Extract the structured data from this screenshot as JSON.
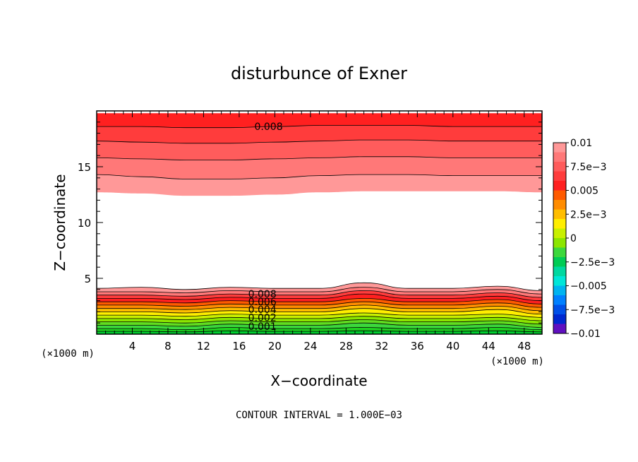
{
  "chart_data": {
    "type": "contour",
    "title": "disturbunce of Exner",
    "xlabel": "X−coordinate",
    "ylabel": "Z−coordinate",
    "x_unit": "(×1000 m)",
    "y_unit": "(×1000 m)",
    "xlim": [
      0,
      50
    ],
    "ylim": [
      0,
      20
    ],
    "x_ticks": [
      4,
      8,
      12,
      16,
      20,
      24,
      28,
      32,
      36,
      40,
      44,
      48
    ],
    "y_ticks": [
      5,
      10,
      15
    ],
    "footer": "CONTOUR INTERVAL = 1.000E−03",
    "colorbar": {
      "min": -0.01,
      "max": 0.01,
      "labels": [
        "0.01",
        "7.5e−3",
        "0.005",
        "2.5e−3",
        "0",
        "−2.5e−3",
        "−0.005",
        "−7.5e−3",
        "−0.01"
      ],
      "colors": [
        "#ff9898",
        "#ff7878",
        "#ff5c5c",
        "#ff3c3c",
        "#ff2020",
        "#ff5a00",
        "#ff8c00",
        "#ffbe00",
        "#ffee00",
        "#c8f000",
        "#8ce600",
        "#3cd83c",
        "#00cc55",
        "#00d8a0",
        "#00e6d8",
        "#00b4f0",
        "#0080ff",
        "#0050e8",
        "#0028d0",
        "#6010c0"
      ]
    },
    "contour_labels": [
      "0.008",
      "0.008",
      "0.006",
      "0.004",
      "0.002",
      "0.001"
    ],
    "bands": [
      {
        "level": 0.01,
        "color": "#ff2020",
        "z": [
          19.8,
          19.8,
          19.8,
          19.8,
          19.8,
          19.8,
          19.8,
          19.8,
          19.8,
          19.8,
          19.8
        ]
      },
      {
        "level": 0.0095,
        "color": "#ff3c3c",
        "z": [
          18.6,
          18.6,
          18.5,
          18.5,
          18.6,
          18.7,
          18.7,
          18.7,
          18.6,
          18.6,
          18.6
        ]
      },
      {
        "level": 0.009,
        "color": "#ff5c5c",
        "z": [
          17.3,
          17.2,
          17.1,
          17.1,
          17.2,
          17.3,
          17.4,
          17.4,
          17.3,
          17.3,
          17.3
        ]
      },
      {
        "level": 0.0085,
        "color": "#ff7878",
        "z": [
          15.8,
          15.7,
          15.6,
          15.6,
          15.7,
          15.8,
          15.9,
          15.9,
          15.8,
          15.8,
          15.8
        ]
      },
      {
        "level": 0.008,
        "color": "#ff9898",
        "z": [
          14.3,
          14.1,
          13.9,
          13.9,
          14.0,
          14.2,
          14.3,
          14.3,
          14.2,
          14.2,
          14.2
        ]
      },
      {
        "level": 0.0075,
        "color": "#ffffff",
        "z": [
          12.7,
          12.6,
          12.4,
          12.4,
          12.5,
          12.7,
          12.8,
          12.8,
          12.8,
          12.8,
          12.7
        ]
      },
      {
        "level": 0.008,
        "color": "#ff9898",
        "z": [
          4.1,
          4.2,
          4.0,
          4.2,
          4.1,
          4.1,
          4.6,
          4.1,
          4.1,
          4.3,
          3.9
        ]
      },
      {
        "level": 0.0085,
        "color": "#ff7878",
        "z": [
          3.8,
          3.8,
          3.7,
          3.9,
          3.8,
          3.8,
          4.2,
          3.8,
          3.8,
          4.0,
          3.6
        ]
      },
      {
        "level": 0.009,
        "color": "#ff3c3c",
        "z": [
          3.5,
          3.5,
          3.4,
          3.6,
          3.5,
          3.5,
          3.9,
          3.5,
          3.5,
          3.7,
          3.3
        ]
      },
      {
        "level": 0.008,
        "color": "#ff2020",
        "z": [
          3.2,
          3.2,
          3.1,
          3.3,
          3.2,
          3.2,
          3.6,
          3.2,
          3.2,
          3.4,
          3.0
        ]
      },
      {
        "level": 0.007,
        "color": "#ff5a00",
        "z": [
          2.9,
          2.9,
          2.8,
          3.0,
          2.9,
          2.9,
          3.2,
          2.9,
          2.9,
          3.1,
          2.7
        ]
      },
      {
        "level": 0.006,
        "color": "#ff8c00",
        "z": [
          2.6,
          2.6,
          2.5,
          2.7,
          2.6,
          2.6,
          2.9,
          2.6,
          2.6,
          2.8,
          2.4
        ]
      },
      {
        "level": 0.005,
        "color": "#ffbe00",
        "z": [
          2.3,
          2.3,
          2.2,
          2.4,
          2.3,
          2.3,
          2.6,
          2.3,
          2.3,
          2.5,
          2.1
        ]
      },
      {
        "level": 0.004,
        "color": "#ffee00",
        "z": [
          2.0,
          2.0,
          1.9,
          2.1,
          2.0,
          2.0,
          2.3,
          2.0,
          2.0,
          2.2,
          1.8
        ]
      },
      {
        "level": 0.003,
        "color": "#c8f000",
        "z": [
          1.7,
          1.7,
          1.6,
          1.8,
          1.7,
          1.7,
          1.9,
          1.7,
          1.7,
          1.8,
          1.5
        ]
      },
      {
        "level": 0.0025,
        "color": "#8ce600",
        "z": [
          1.4,
          1.4,
          1.3,
          1.5,
          1.4,
          1.4,
          1.6,
          1.4,
          1.4,
          1.5,
          1.2
        ]
      },
      {
        "level": 0.002,
        "color": "#60dc20",
        "z": [
          1.1,
          1.1,
          1.0,
          1.2,
          1.1,
          1.1,
          1.3,
          1.1,
          1.1,
          1.2,
          0.9
        ]
      },
      {
        "level": 0.0015,
        "color": "#3cd83c",
        "z": [
          0.8,
          0.8,
          0.7,
          0.9,
          0.8,
          0.8,
          1.0,
          0.8,
          0.8,
          0.9,
          0.6
        ]
      },
      {
        "level": 0.001,
        "color": "#20d020",
        "z": [
          0.5,
          0.5,
          0.4,
          0.6,
          0.5,
          0.5,
          0.6,
          0.5,
          0.5,
          0.6,
          0.4
        ]
      },
      {
        "level": 0.0005,
        "color": "#00d030",
        "z": [
          0.25,
          0.25,
          0.2,
          0.3,
          0.25,
          0.25,
          0.3,
          0.25,
          0.25,
          0.3,
          0.2
        ]
      }
    ],
    "band_x": [
      0,
      5,
      10,
      15,
      20,
      25,
      30,
      35,
      40,
      45,
      50
    ]
  }
}
